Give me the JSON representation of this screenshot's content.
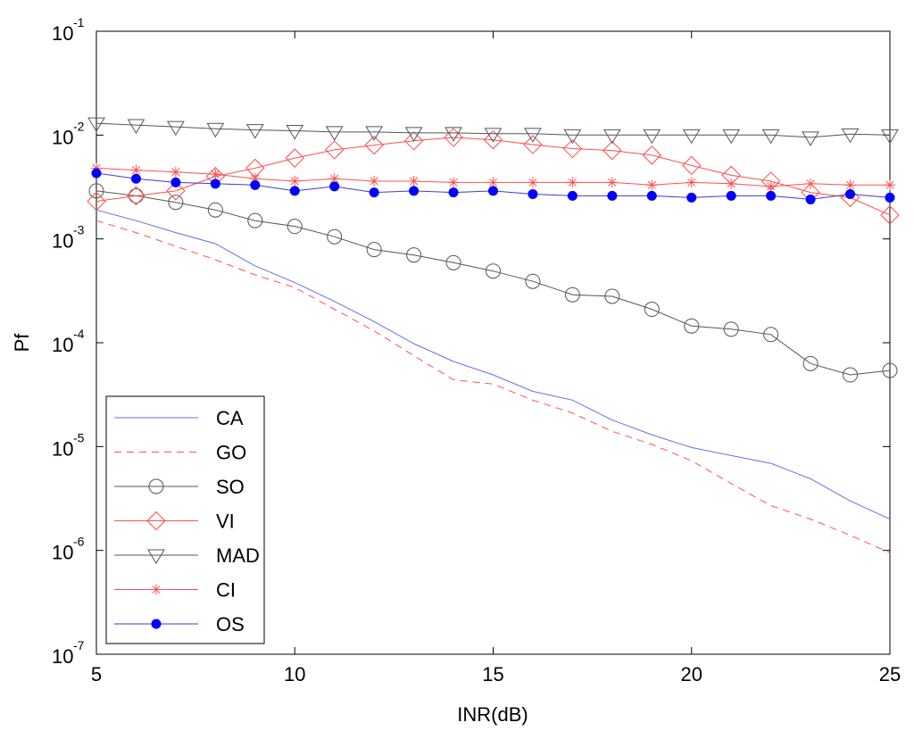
{
  "chart_data": {
    "type": "line",
    "xlabel": "INR(dB)",
    "ylabel": "Pf",
    "xlim": [
      5,
      25
    ],
    "ylim": [
      1e-07,
      0.1
    ],
    "yscale": "log",
    "grid": false,
    "legend_position": "bottom-left",
    "x_ticks": [
      5,
      10,
      15,
      20,
      25
    ],
    "x_tick_labels": [
      "5",
      "10",
      "15",
      "20",
      "25"
    ],
    "y_ticks": [
      {
        "value": 0.1,
        "base": "10",
        "exp": "-1"
      },
      {
        "value": 0.01,
        "base": "10",
        "exp": "-2"
      },
      {
        "value": 0.001,
        "base": "10",
        "exp": "-3"
      },
      {
        "value": 0.0001,
        "base": "10",
        "exp": "-4"
      },
      {
        "value": 1e-05,
        "base": "10",
        "exp": "-5"
      },
      {
        "value": 1e-06,
        "base": "10",
        "exp": "-6"
      },
      {
        "value": 1e-07,
        "base": "10",
        "exp": "-7"
      }
    ],
    "x": [
      5,
      6,
      7,
      8,
      9,
      10,
      11,
      12,
      13,
      14,
      15,
      16,
      17,
      18,
      19,
      20,
      21,
      22,
      23,
      24,
      25
    ],
    "series": [
      {
        "name": "CA",
        "color": "#6b6bf0",
        "dash": "",
        "marker": "none",
        "values": [
          0.0019,
          0.0015,
          0.00115,
          0.0009,
          0.00055,
          0.00038,
          0.00025,
          0.00016,
          9.8e-05,
          6.6e-05,
          4.9e-05,
          3.4e-05,
          2.8e-05,
          1.8e-05,
          1.3e-05,
          9.8e-06,
          8.2e-06,
          6.9e-06,
          4.9e-06,
          3e-06,
          2e-06
        ]
      },
      {
        "name": "GO",
        "color": "#ff5050",
        "dash": "8,6",
        "marker": "none",
        "values": [
          0.0015,
          0.00115,
          0.00085,
          0.00063,
          0.00045,
          0.00034,
          0.00021,
          0.00013,
          7.5e-05,
          4.4e-05,
          4e-05,
          2.8e-05,
          2.1e-05,
          1.4e-05,
          1.05e-05,
          7.3e-06,
          4.4e-06,
          2.7e-06,
          2e-06,
          1.4e-06,
          9.5e-07
        ]
      },
      {
        "name": "SO",
        "color": "#555555",
        "dash": "",
        "marker": "circle",
        "values": [
          0.0029,
          0.0026,
          0.00225,
          0.0019,
          0.0015,
          0.00132,
          0.00105,
          0.00079,
          0.0007,
          0.00059,
          0.00049,
          0.00039,
          0.00029,
          0.00028,
          0.00021,
          0.000145,
          0.000135,
          0.00012,
          6.3e-05,
          4.9e-05,
          5.4e-05
        ]
      },
      {
        "name": "VI",
        "color": "#ff4d4d",
        "dash": "",
        "marker": "diamond",
        "values": [
          0.0023,
          0.0026,
          0.0029,
          0.004,
          0.0048,
          0.006,
          0.0072,
          0.008,
          0.0088,
          0.0095,
          0.009,
          0.0081,
          0.0074,
          0.0071,
          0.0064,
          0.0051,
          0.0041,
          0.0036,
          0.0028,
          0.0025,
          0.0017
        ]
      },
      {
        "name": "MAD",
        "color": "#555555",
        "dash": "",
        "marker": "triangle-down",
        "values": [
          0.013,
          0.0125,
          0.012,
          0.0115,
          0.0112,
          0.011,
          0.0107,
          0.0107,
          0.0105,
          0.0105,
          0.0103,
          0.0103,
          0.01,
          0.01,
          0.01,
          0.01,
          0.01,
          0.01,
          0.0095,
          0.0102,
          0.01
        ]
      },
      {
        "name": "CI",
        "color": "#ff5050",
        "dash": "",
        "marker": "asterisk",
        "values": [
          0.0048,
          0.0046,
          0.0044,
          0.0042,
          0.0038,
          0.0036,
          0.0038,
          0.0036,
          0.0036,
          0.0035,
          0.0035,
          0.0035,
          0.0035,
          0.0035,
          0.0033,
          0.0035,
          0.0034,
          0.0032,
          0.0034,
          0.0033,
          0.0033
        ]
      },
      {
        "name": "OS",
        "color": "#3c3ccf",
        "dash": "",
        "marker": "dot",
        "values": [
          0.0043,
          0.0038,
          0.0035,
          0.0034,
          0.0033,
          0.0029,
          0.0032,
          0.0028,
          0.0029,
          0.0028,
          0.0029,
          0.0027,
          0.0026,
          0.0026,
          0.0026,
          0.0025,
          0.0026,
          0.0026,
          0.0024,
          0.0027,
          0.0025
        ]
      }
    ]
  }
}
